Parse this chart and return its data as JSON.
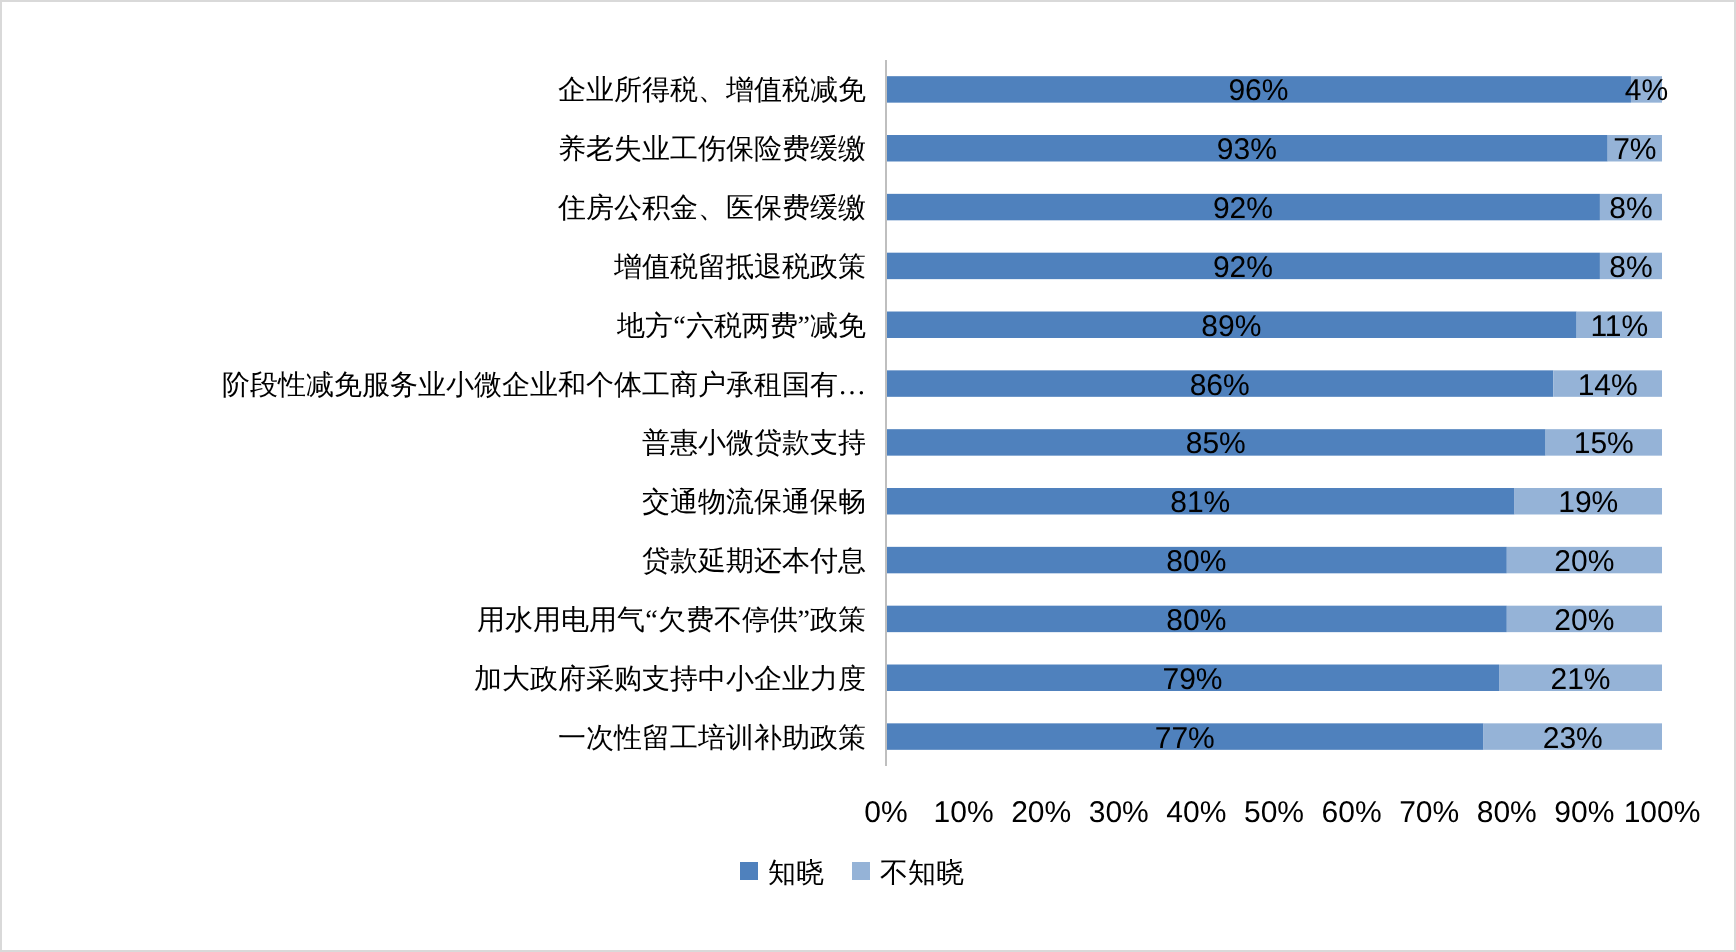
{
  "chart_data": {
    "type": "bar",
    "orientation": "horizontal",
    "stacked": true,
    "categories": [
      "企业所得税、增值税减免",
      "养老失业工伤保险费缓缴",
      "住房公积金、医保费缓缴",
      "增值税留抵退税政策",
      "地方“六税两费”减免",
      "阶段性减免服务业小微企业和个体工商户承租国有…",
      "普惠小微贷款支持",
      "交通物流保通保畅",
      "贷款延期还本付息",
      "用水用电用气“欠费不停供”政策",
      "加大政府采购支持中小企业力度",
      "一次性留工培训补助政策"
    ],
    "series": [
      {
        "name": "知晓",
        "color": "#4f81bd",
        "values": [
          96,
          93,
          92,
          92,
          89,
          86,
          85,
          81,
          80,
          80,
          79,
          77
        ],
        "value_labels": [
          "96%",
          "93%",
          "92%",
          "92%",
          "89%",
          "86%",
          "85%",
          "81%",
          "80%",
          "80%",
          "79%",
          "77%"
        ]
      },
      {
        "name": "不知晓",
        "color": "#95b3d7",
        "values": [
          4,
          7,
          8,
          8,
          11,
          14,
          15,
          19,
          20,
          20,
          21,
          23
        ],
        "value_labels": [
          "4%",
          "7%",
          "8%",
          "8%",
          "11%",
          "14%",
          "15%",
          "19%",
          "20%",
          "20%",
          "21%",
          "23%"
        ]
      }
    ],
    "xlim": [
      0,
      100
    ],
    "xticks": [
      {
        "value": 0,
        "label": "0%"
      },
      {
        "value": 10,
        "label": "10%"
      },
      {
        "value": 20,
        "label": "20%"
      },
      {
        "value": 30,
        "label": "30%"
      },
      {
        "value": 40,
        "label": "40%"
      },
      {
        "value": 50,
        "label": "50%"
      },
      {
        "value": 60,
        "label": "60%"
      },
      {
        "value": 70,
        "label": "70%"
      },
      {
        "value": 80,
        "label": "80%"
      },
      {
        "value": 90,
        "label": "90%"
      },
      {
        "value": 100,
        "label": "100%"
      }
    ],
    "legend": "bottom",
    "grid": false
  }
}
